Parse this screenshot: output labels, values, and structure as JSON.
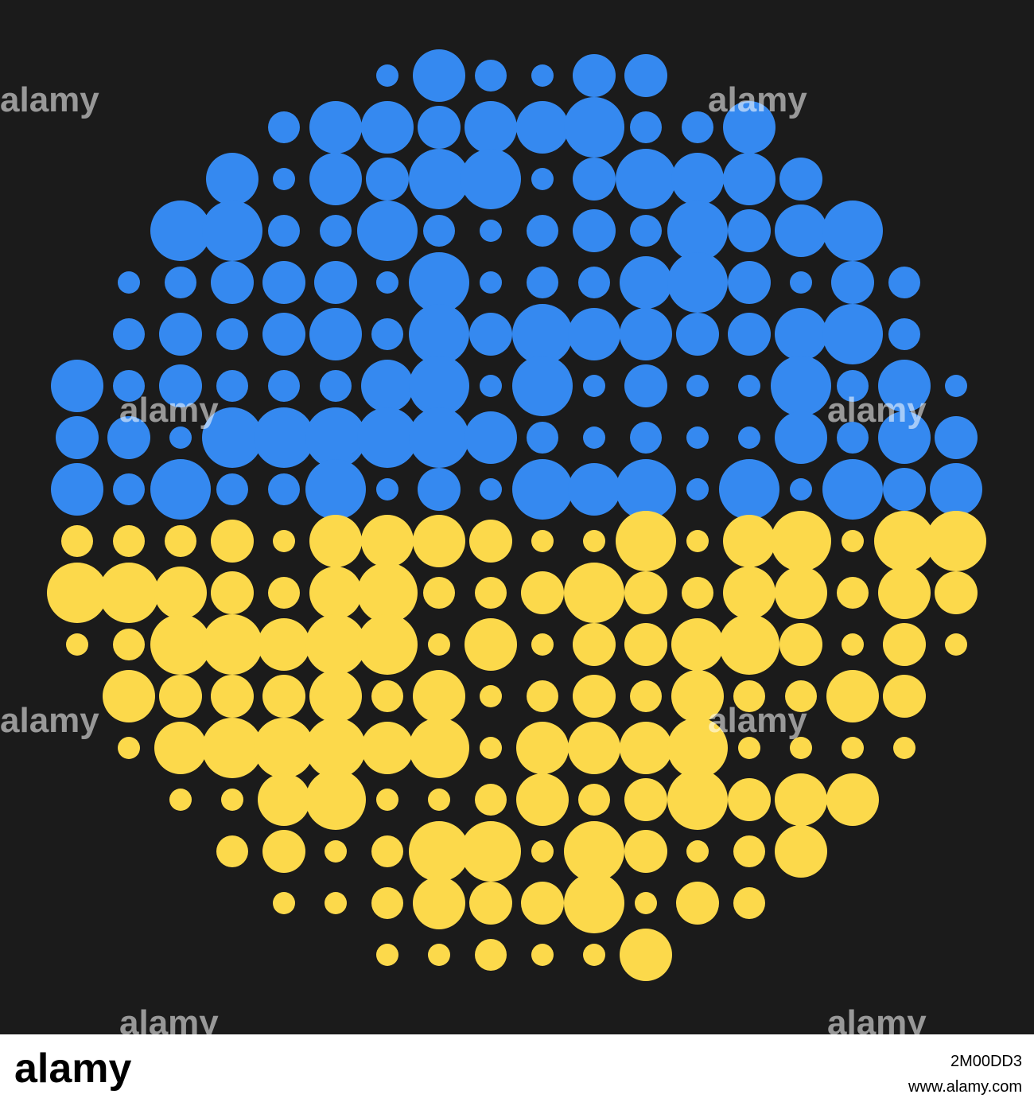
{
  "watermarks": [
    "alamy",
    "alamy",
    "alamy",
    "alamy",
    "alamy",
    "alamy",
    "alamy",
    "alamy"
  ],
  "footer": {
    "logo": "alamy",
    "image_id": "2M00DD3",
    "url": "www.alamy.com"
  }
}
